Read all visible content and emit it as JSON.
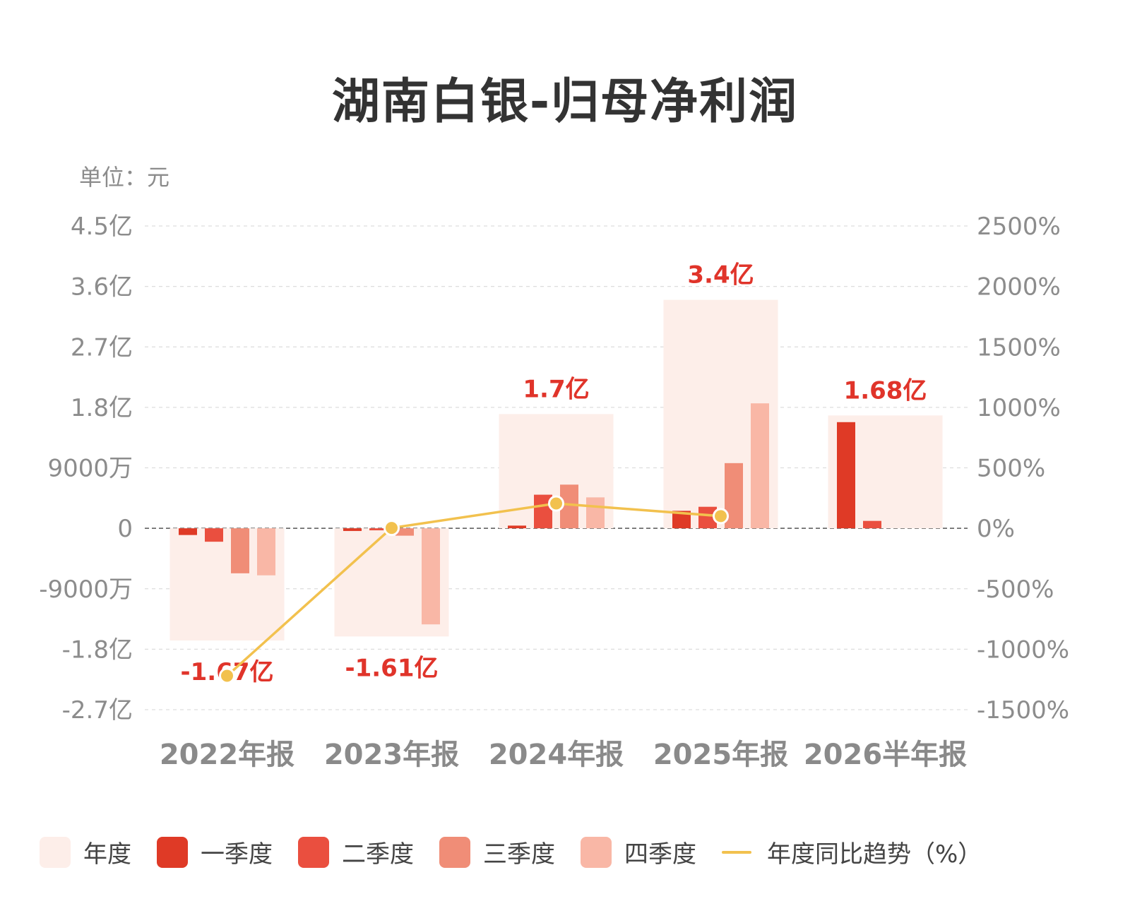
{
  "title": "湖南白银-归母净利润",
  "unit_label": "单位：元",
  "colors": {
    "annual": "#fdeee9",
    "q1": "#df3a26",
    "q2": "#ea4f3f",
    "q3": "#f08d77",
    "q4": "#f9b7a6",
    "trend": "#f2c14e",
    "value_label": "#e0342a",
    "axis_text": "#8c8c8c"
  },
  "legend": [
    {
      "label": "年度",
      "key": "annual",
      "kind": "box"
    },
    {
      "label": "一季度",
      "key": "q1",
      "kind": "box"
    },
    {
      "label": "二季度",
      "key": "q2",
      "kind": "box"
    },
    {
      "label": "三季度",
      "key": "q3",
      "kind": "box"
    },
    {
      "label": "四季度",
      "key": "q4",
      "kind": "box"
    },
    {
      "label": "年度同比趋势（%）",
      "key": "trend",
      "kind": "line"
    }
  ],
  "chart_data": {
    "type": "bar",
    "categories": [
      "2022年报",
      "2023年报",
      "2024年报",
      "2025年报",
      "2026半年报"
    ],
    "annual_values": [
      -16700,
      -16100,
      17000,
      34000,
      16800
    ],
    "annual_labels": [
      "-1.67亿",
      "-1.61亿",
      "1.7亿",
      "3.4亿",
      "1.68亿"
    ],
    "value_unit": "万元",
    "series": [
      {
        "name": "一季度",
        "key": "q1",
        "values": [
          -1000,
          -400,
          400,
          2600,
          15800
        ]
      },
      {
        "name": "二季度",
        "key": "q2",
        "values": [
          -2000,
          -300,
          5000,
          3200,
          1100
        ]
      },
      {
        "name": "三季度",
        "key": "q3",
        "values": [
          -6700,
          -1100,
          6500,
          9700,
          null
        ]
      },
      {
        "name": "四季度",
        "key": "q4",
        "values": [
          -7000,
          -14300,
          4600,
          18600,
          null
        ]
      }
    ],
    "trend": {
      "name": "年度同比趋势（%）",
      "values": [
        -1220,
        3,
        205,
        101,
        null
      ]
    },
    "y_left": {
      "min": -27000,
      "max": 45000,
      "ticks": [
        45000,
        36000,
        27000,
        18000,
        9000,
        0,
        -9000,
        -18000,
        -27000
      ],
      "tick_labels": [
        "4.5亿",
        "3.6亿",
        "2.7亿",
        "1.8亿",
        "9000万",
        "0",
        "-9000万",
        "-1.8亿",
        "-2.7亿"
      ]
    },
    "y_right": {
      "min": -1500,
      "max": 2500,
      "ticks": [
        2500,
        2000,
        1500,
        1000,
        500,
        0,
        -500,
        -1000,
        -1500
      ],
      "tick_labels": [
        "2500%",
        "2000%",
        "1500%",
        "1000%",
        "500%",
        "0%",
        "-500%",
        "-1000%",
        "-1500%"
      ]
    },
    "grid": true,
    "legend_position": "bottom"
  }
}
